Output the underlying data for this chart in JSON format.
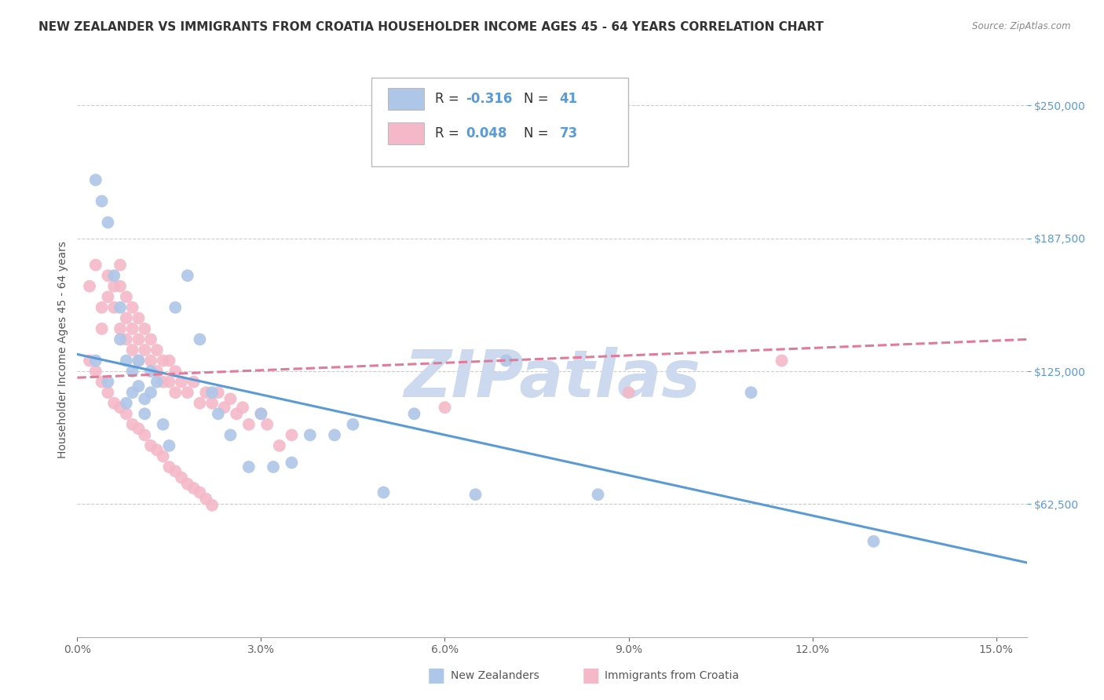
{
  "title": "NEW ZEALANDER VS IMMIGRANTS FROM CROATIA HOUSEHOLDER INCOME AGES 45 - 64 YEARS CORRELATION CHART",
  "source": "Source: ZipAtlas.com",
  "ylabel": "Householder Income Ages 45 - 64 years",
  "xlabel_ticks": [
    "0.0%",
    "3.0%",
    "6.0%",
    "9.0%",
    "12.0%",
    "15.0%"
  ],
  "xlabel_vals": [
    0.0,
    0.03,
    0.06,
    0.09,
    0.12,
    0.15
  ],
  "ytick_labels": [
    "$62,500",
    "$125,000",
    "$187,500",
    "$250,000"
  ],
  "ytick_vals": [
    62500,
    125000,
    187500,
    250000
  ],
  "xlim": [
    0.0,
    0.155
  ],
  "ylim": [
    0,
    270000
  ],
  "bottom_legend": [
    "New Zealanders",
    "Immigrants from Croatia"
  ],
  "blue_color": "#aec6e8",
  "pink_color": "#f4b8c8",
  "blue_line_color": "#5b9bd5",
  "pink_line_color": "#e07b9a",
  "watermark": "ZIPatlas",
  "blue_scatter_x": [
    0.003,
    0.004,
    0.005,
    0.006,
    0.007,
    0.007,
    0.008,
    0.009,
    0.009,
    0.01,
    0.01,
    0.011,
    0.011,
    0.012,
    0.012,
    0.013,
    0.014,
    0.015,
    0.016,
    0.018,
    0.02,
    0.022,
    0.023,
    0.025,
    0.028,
    0.03,
    0.032,
    0.035,
    0.038,
    0.042,
    0.045,
    0.05,
    0.055,
    0.065,
    0.07,
    0.085,
    0.11,
    0.13,
    0.003,
    0.005,
    0.008
  ],
  "blue_scatter_y": [
    215000,
    205000,
    195000,
    170000,
    155000,
    140000,
    130000,
    125000,
    115000,
    130000,
    118000,
    112000,
    105000,
    125000,
    115000,
    120000,
    100000,
    90000,
    155000,
    170000,
    140000,
    115000,
    105000,
    95000,
    80000,
    105000,
    80000,
    82000,
    95000,
    95000,
    100000,
    68000,
    105000,
    67000,
    130000,
    67000,
    115000,
    45000,
    130000,
    120000,
    110000
  ],
  "pink_scatter_x": [
    0.002,
    0.003,
    0.004,
    0.004,
    0.005,
    0.005,
    0.006,
    0.006,
    0.007,
    0.007,
    0.007,
    0.008,
    0.008,
    0.008,
    0.009,
    0.009,
    0.009,
    0.01,
    0.01,
    0.01,
    0.011,
    0.011,
    0.012,
    0.012,
    0.013,
    0.013,
    0.014,
    0.014,
    0.015,
    0.015,
    0.016,
    0.016,
    0.017,
    0.018,
    0.019,
    0.02,
    0.021,
    0.022,
    0.023,
    0.024,
    0.025,
    0.026,
    0.027,
    0.028,
    0.03,
    0.031,
    0.033,
    0.035,
    0.002,
    0.003,
    0.004,
    0.005,
    0.006,
    0.007,
    0.008,
    0.009,
    0.01,
    0.011,
    0.012,
    0.013,
    0.014,
    0.015,
    0.016,
    0.017,
    0.018,
    0.019,
    0.02,
    0.021,
    0.022,
    0.06,
    0.09,
    0.115
  ],
  "pink_scatter_y": [
    165000,
    175000,
    155000,
    145000,
    170000,
    160000,
    165000,
    155000,
    175000,
    165000,
    145000,
    160000,
    150000,
    140000,
    155000,
    145000,
    135000,
    150000,
    140000,
    130000,
    145000,
    135000,
    140000,
    130000,
    135000,
    125000,
    130000,
    120000,
    130000,
    120000,
    125000,
    115000,
    120000,
    115000,
    120000,
    110000,
    115000,
    110000,
    115000,
    108000,
    112000,
    105000,
    108000,
    100000,
    105000,
    100000,
    90000,
    95000,
    130000,
    125000,
    120000,
    115000,
    110000,
    108000,
    105000,
    100000,
    98000,
    95000,
    90000,
    88000,
    85000,
    80000,
    78000,
    75000,
    72000,
    70000,
    68000,
    65000,
    62000,
    108000,
    115000,
    130000
  ],
  "blue_trendline_x": [
    0.0,
    0.155
  ],
  "blue_trendline_y": [
    133000,
    35000
  ],
  "pink_trendline_x": [
    0.0,
    0.155
  ],
  "pink_trendline_y": [
    122000,
    140000
  ],
  "background_color": "#ffffff",
  "grid_color": "#cccccc",
  "title_fontsize": 11,
  "axis_label_fontsize": 10,
  "tick_fontsize": 10,
  "watermark_color": "#ccd9ee",
  "watermark_fontsize": 60
}
